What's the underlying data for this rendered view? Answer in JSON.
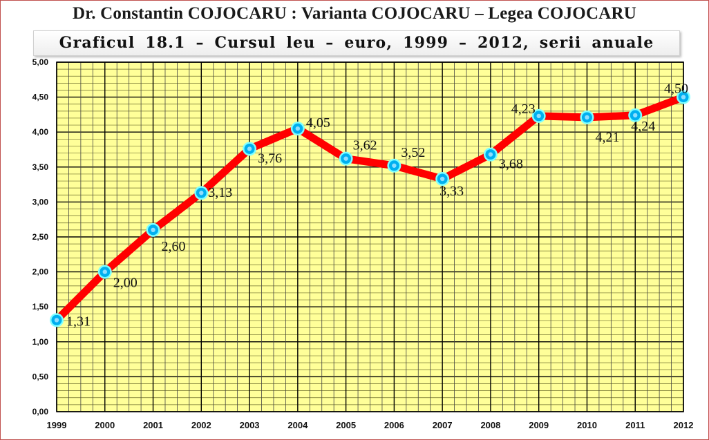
{
  "header": {
    "main_title": "Dr. Constantin COJOCARU : Varianta COJOCARU – Legea COJOCARU"
  },
  "chart_data": {
    "type": "line",
    "title": "Graficul  18.1 – Cursul  leu – euro, 1999 – 2012,  serii anuale",
    "xlabel": "",
    "ylabel": "",
    "categories": [
      "1999",
      "2000",
      "2001",
      "2002",
      "2003",
      "2004",
      "2005",
      "2006",
      "2007",
      "2008",
      "2009",
      "2010",
      "2011",
      "2012"
    ],
    "series": [
      {
        "values": [
          1.31,
          2.0,
          2.6,
          3.13,
          3.76,
          4.05,
          3.62,
          3.52,
          3.33,
          3.68,
          4.23,
          4.21,
          4.24,
          4.5
        ]
      }
    ],
    "data_labels": [
      "1,31",
      "2,00",
      "2,60",
      "3,13",
      "3,76",
      "4,05",
      "3,62",
      "3,52",
      "3,33",
      "3,68",
      "4,23",
      "4,21",
      "4,24",
      "4,50"
    ],
    "y_ticks": [
      "0,00",
      "0,50",
      "1,00",
      "1,50",
      "2,00",
      "2,50",
      "3,00",
      "3,50",
      "4,00",
      "4,50",
      "5,00"
    ],
    "ylim": [
      0,
      5
    ],
    "grid": true,
    "legend": "none",
    "colors": {
      "plot_background": "#ffff99",
      "grid_lines": "#000000",
      "line": "#ff0000",
      "marker_fill": "#00b0f0",
      "marker_ring": "#7fffff"
    }
  }
}
